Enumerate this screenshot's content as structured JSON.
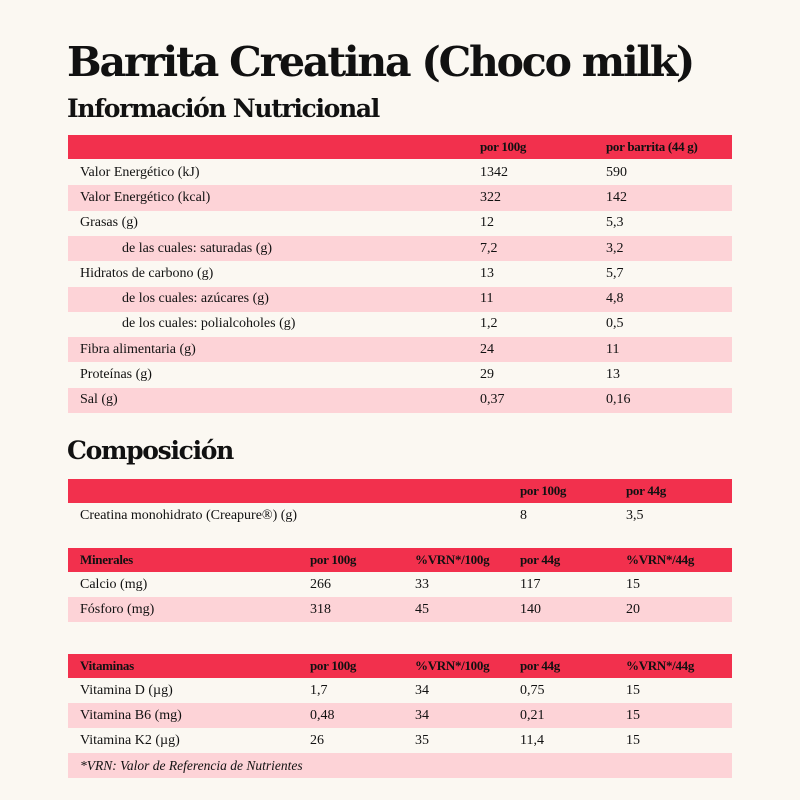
{
  "header": {
    "title": "Barrita Creatina (Choco milk)",
    "subtitle": "Información Nutricional"
  },
  "nutrition_table": {
    "columns": [
      "por 100g",
      "por barrita (44 g)"
    ],
    "rows": [
      {
        "label": "Valor Energético (kJ)",
        "values": [
          "1342",
          "590"
        ]
      },
      {
        "label": "Valor Energético (kcal)",
        "values": [
          "322",
          "142"
        ]
      },
      {
        "label": "Grasas (g)",
        "values": [
          "12",
          "5,3"
        ]
      },
      {
        "label": "de las cuales: saturadas (g)",
        "values": [
          "7,2",
          "3,2"
        ]
      },
      {
        "label": "Hidratos de carbono (g)",
        "values": [
          "13",
          "5,7"
        ]
      },
      {
        "label": "de los cuales: azúcares (g)",
        "values": [
          "11",
          "4,8"
        ]
      },
      {
        "label": "de los cuales: polialcoholes (g)",
        "values": [
          "1,2",
          "0,5"
        ]
      },
      {
        "label": "Fibra alimentaria (g)",
        "values": [
          "24",
          "11"
        ]
      },
      {
        "label": "Proteínas (g)",
        "values": [
          "29",
          "13"
        ]
      },
      {
        "label": "Sal (g)",
        "values": [
          "0,37",
          "0,16"
        ]
      }
    ]
  },
  "composition": {
    "title": "Composición",
    "columns": [
      "por 100g",
      "por 44g"
    ],
    "rows": [
      {
        "label": "Creatina monohidrato (Creapure®) (g)",
        "values": [
          "8",
          "3,5"
        ]
      }
    ]
  },
  "minerals": {
    "columns": [
      "Minerales",
      "por 100g",
      "%VRN*/100g",
      "por 44g",
      "%VRN*/44g"
    ],
    "rows": [
      [
        "Calcio (mg)",
        "266",
        "33",
        "117",
        "15"
      ],
      [
        "Fósforo (mg)",
        "318",
        "45",
        "140",
        "20"
      ]
    ]
  },
  "vitamins": {
    "columns": [
      "Vitaminas",
      "por 100g",
      "%VRN*/100g",
      "por 44g",
      "%VRN*/44g"
    ],
    "rows": [
      [
        "Vitamina D (µg)",
        "1,7",
        "34",
        "0,75",
        "15"
      ],
      [
        "Vitamina B6 (mg)",
        "0,48",
        "34",
        "0,21",
        "15"
      ],
      [
        "Vitamina K2 (µg)",
        "26",
        "35",
        "11,4",
        "15"
      ]
    ],
    "footnote": "*VRN: Valor de Referencia de Nutrientes"
  }
}
